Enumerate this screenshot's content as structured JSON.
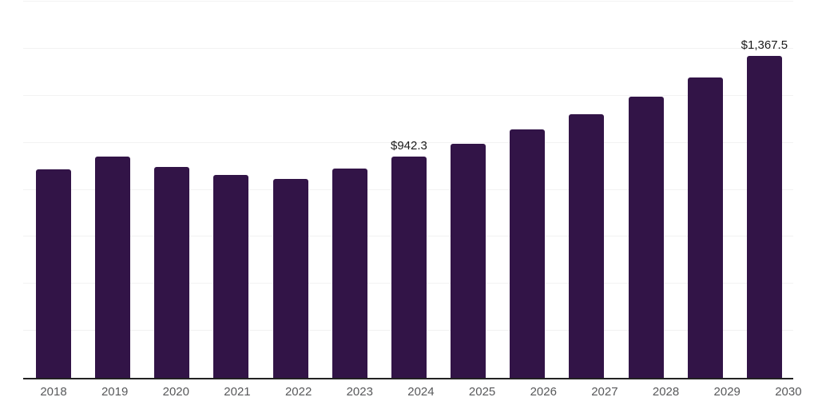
{
  "chart_data": {
    "type": "bar",
    "title": "",
    "xlabel": "",
    "ylabel": "",
    "categories": [
      "2018",
      "2019",
      "2020",
      "2021",
      "2022",
      "2023",
      "2024",
      "2025",
      "2026",
      "2027",
      "2028",
      "2029",
      "2030"
    ],
    "values": [
      888,
      941,
      898,
      864,
      847,
      891,
      942.3,
      996,
      1056,
      1121,
      1195,
      1277,
      1367.5
    ],
    "data_labels": [
      "",
      "",
      "",
      "",
      "",
      "",
      "$942.3",
      "",
      "",
      "",
      "",
      "",
      "$1,367.5"
    ],
    "ylim": [
      0,
      1600
    ],
    "y_step": 200,
    "grid": true,
    "legend": "none"
  },
  "colors": {
    "bar": "#321447",
    "gridline": "#f2f2f2",
    "axis_line": "#222222",
    "tick_label": "#58595b",
    "data_label": "#1a1a1a",
    "background": "#ffffff"
  }
}
